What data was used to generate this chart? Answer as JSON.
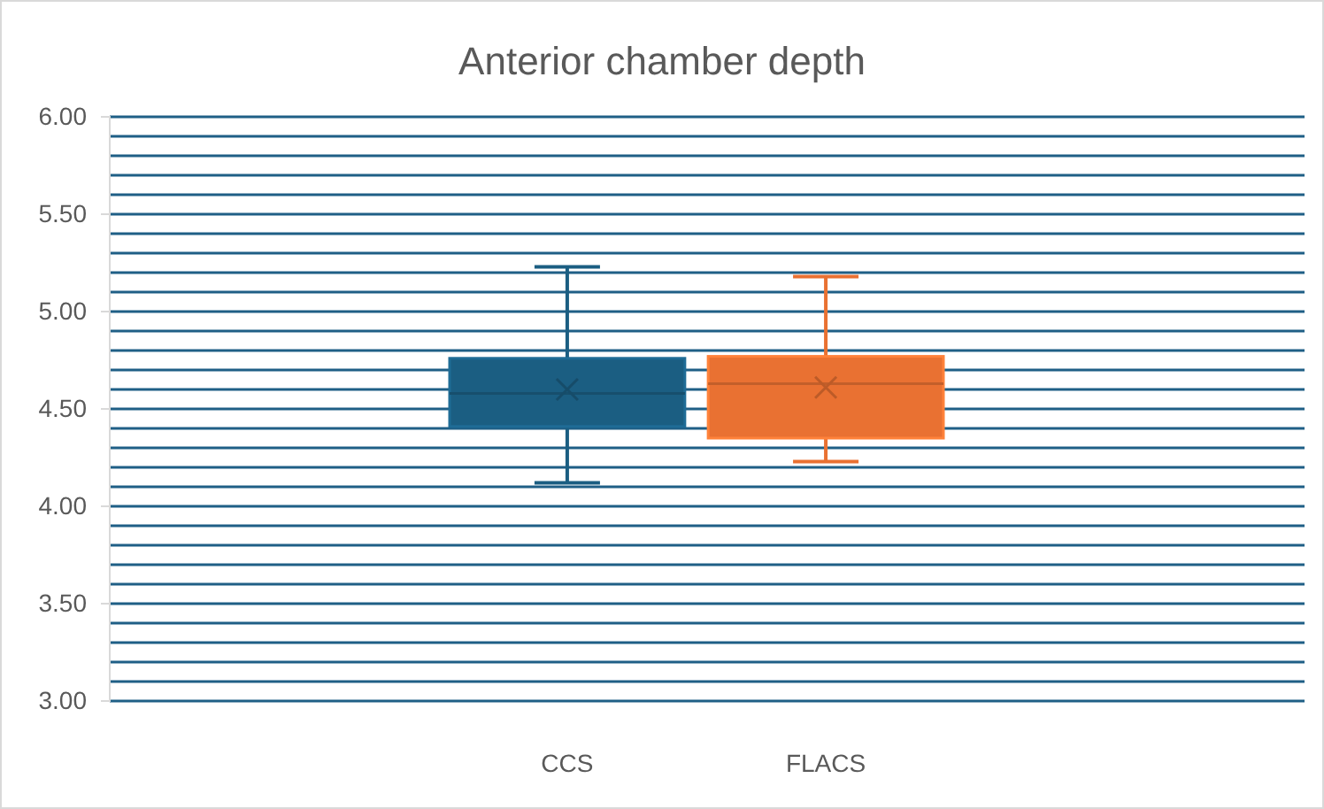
{
  "chart_data": {
    "type": "box",
    "title": "Anterior chamber depth",
    "categories": [
      "CCS",
      "FLACS"
    ],
    "colors": [
      "#1b5e82",
      "#e97132"
    ],
    "boxes": [
      {
        "low": 4.12,
        "q1": 4.41,
        "median": 4.58,
        "q3": 4.76,
        "high": 5.23,
        "mean": 4.6
      },
      {
        "low": 4.23,
        "q1": 4.35,
        "median": 4.63,
        "q3": 4.77,
        "high": 5.18,
        "mean": 4.61
      }
    ],
    "ylim": [
      3,
      6
    ],
    "yticks": [
      {
        "value": 3,
        "label": "3.00"
      },
      {
        "value": 3.1,
        "label": null
      },
      {
        "value": 3.2,
        "label": null
      },
      {
        "value": 3.3,
        "label": null
      },
      {
        "value": 3.4,
        "label": null
      },
      {
        "value": 3.5,
        "label": "3.50"
      },
      {
        "value": 3.6,
        "label": null
      },
      {
        "value": 3.7,
        "label": null
      },
      {
        "value": 3.8,
        "label": null
      },
      {
        "value": 3.9,
        "label": null
      },
      {
        "value": 4,
        "label": "4.00"
      },
      {
        "value": 4.1,
        "label": null
      },
      {
        "value": 4.2,
        "label": null
      },
      {
        "value": 4.3,
        "label": null
      },
      {
        "value": 4.4,
        "label": null
      },
      {
        "value": 4.5,
        "label": "4.50"
      },
      {
        "value": 4.6,
        "label": null
      },
      {
        "value": 4.7,
        "label": null
      },
      {
        "value": 4.8,
        "label": null
      },
      {
        "value": 4.9,
        "label": null
      },
      {
        "value": 5,
        "label": "5.00"
      },
      {
        "value": 5.1,
        "label": null
      },
      {
        "value": 5.2,
        "label": null
      },
      {
        "value": 5.3,
        "label": null
      },
      {
        "value": 5.4,
        "label": null
      },
      {
        "value": 5.5,
        "label": "5.50"
      },
      {
        "value": 5.6,
        "label": null
      },
      {
        "value": 5.7,
        "label": null
      },
      {
        "value": 5.8,
        "label": null
      },
      {
        "value": 5.9,
        "label": null
      },
      {
        "value": 6,
        "label": "6.00"
      }
    ],
    "grid": true
  }
}
